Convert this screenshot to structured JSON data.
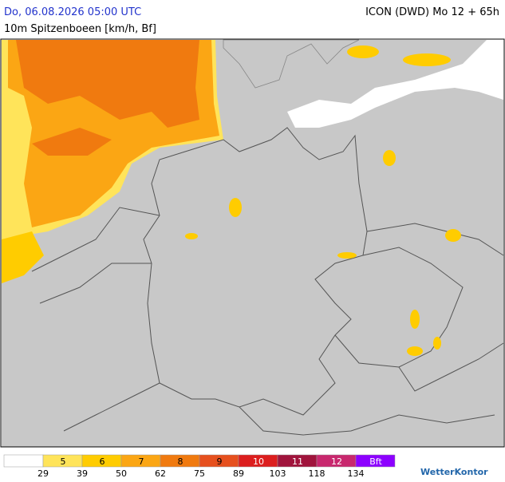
{
  "header": {
    "title": "Do, 06.08.2026 05:00 UTC",
    "model": "ICON (DWD) Mo 12 + 65h",
    "subtitle": "10m Spitzenboeen [km/h, Bf]"
  },
  "legend": {
    "classes": [
      {
        "color": "#ffffff"
      },
      {
        "label": 5,
        "color": "#ffe45a"
      },
      {
        "label": 6,
        "color": "#ffcc00"
      },
      {
        "label": 7,
        "color": "#fba614"
      },
      {
        "label": 8,
        "color": "#f07a0f"
      },
      {
        "label": 9,
        "color": "#e6501e"
      },
      {
        "label": 10,
        "color": "#dc1e1e"
      },
      {
        "label": 11,
        "color": "#a0143c"
      },
      {
        "label": 12,
        "color": "#c8286e"
      },
      {
        "label": "Bft",
        "color": "#8c00ff"
      }
    ],
    "kmh": [
      29,
      39,
      50,
      62,
      75,
      89,
      103,
      118,
      134
    ]
  },
  "logo": "WetterKontor"
}
